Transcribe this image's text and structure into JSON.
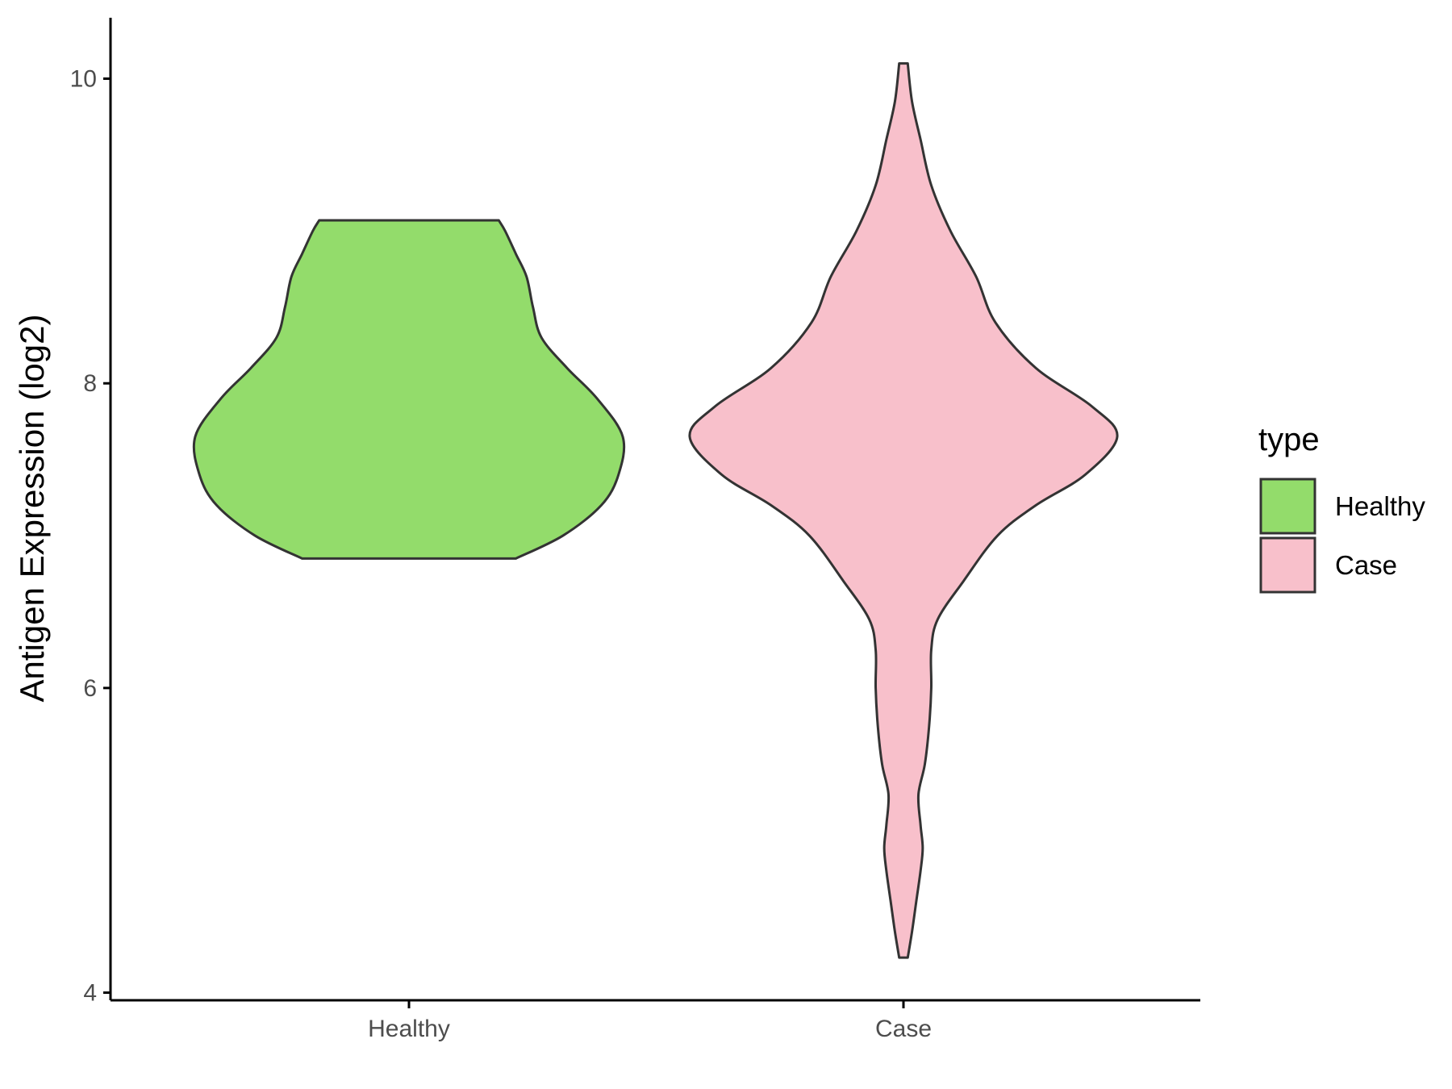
{
  "chart_data": {
    "type": "violin",
    "ylabel": "Antigen Expression (log2)",
    "xlabel": "",
    "title": "",
    "categories": [
      "Healthy",
      "Case"
    ],
    "ylim": [
      3.95,
      10.4
    ],
    "yticks": [
      4,
      6,
      8,
      10
    ],
    "legend": {
      "title": "type",
      "position": "right",
      "entries": [
        {
          "label": "Healthy",
          "color": "#93DC6B"
        },
        {
          "label": "Case",
          "color": "#F8C0CB"
        }
      ]
    },
    "series": [
      {
        "category": "Healthy",
        "color": "#93DC6B",
        "y_min": 6.85,
        "y_max": 9.07,
        "density_profile": [
          [
            6.85,
            0.5
          ],
          [
            7.0,
            0.72
          ],
          [
            7.2,
            0.9
          ],
          [
            7.4,
            0.98
          ],
          [
            7.65,
            1.0
          ],
          [
            7.9,
            0.88
          ],
          [
            8.1,
            0.74
          ],
          [
            8.3,
            0.62
          ],
          [
            8.5,
            0.58
          ],
          [
            8.7,
            0.55
          ],
          [
            8.85,
            0.5
          ],
          [
            9.0,
            0.45
          ],
          [
            9.07,
            0.42
          ]
        ]
      },
      {
        "category": "Case",
        "color": "#F8C0CB",
        "y_min": 4.23,
        "y_max": 10.1,
        "density_profile": [
          [
            4.23,
            0.02
          ],
          [
            4.4,
            0.04
          ],
          [
            4.6,
            0.06
          ],
          [
            4.8,
            0.08
          ],
          [
            4.95,
            0.09
          ],
          [
            5.1,
            0.08
          ],
          [
            5.3,
            0.07
          ],
          [
            5.5,
            0.1
          ],
          [
            5.75,
            0.12
          ],
          [
            6.0,
            0.13
          ],
          [
            6.25,
            0.13
          ],
          [
            6.45,
            0.16
          ],
          [
            6.7,
            0.28
          ],
          [
            7.0,
            0.44
          ],
          [
            7.2,
            0.62
          ],
          [
            7.4,
            0.85
          ],
          [
            7.65,
            1.0
          ],
          [
            7.85,
            0.88
          ],
          [
            8.1,
            0.62
          ],
          [
            8.4,
            0.43
          ],
          [
            8.7,
            0.34
          ],
          [
            9.0,
            0.22
          ],
          [
            9.3,
            0.13
          ],
          [
            9.6,
            0.08
          ],
          [
            9.85,
            0.04
          ],
          [
            10.1,
            0.02
          ]
        ]
      }
    ]
  }
}
